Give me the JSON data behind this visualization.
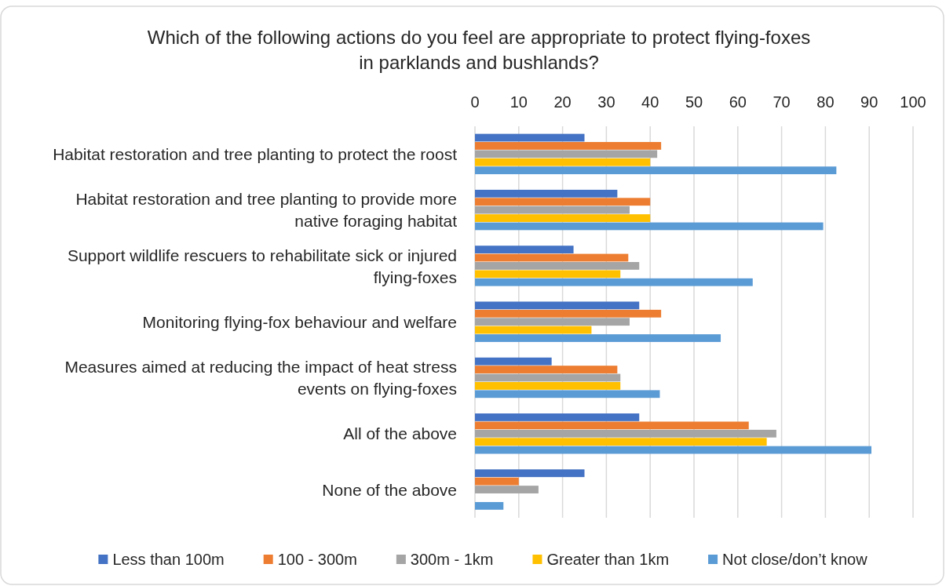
{
  "chart_data": {
    "type": "bar",
    "orientation": "horizontal",
    "title": "Which of the following actions do you feel are appropriate to protect flying-foxes in parklands and bushlands?",
    "categories": [
      "Habitat restoration and tree planting to protect the roost",
      "Habitat restoration and tree planting to provide more native foraging habitat",
      "Support wildlife rescuers to rehabilitate sick or injured flying-foxes",
      "Monitoring flying-fox behaviour and welfare",
      "Measures aimed at reducing the impact of heat stress events on flying-foxes",
      "All of the above",
      "None of the above"
    ],
    "series": [
      {
        "name": "Less than 100m",
        "color": "#4472c4",
        "values": [
          25,
          32.5,
          22.5,
          37.5,
          17.5,
          37.5,
          25
        ]
      },
      {
        "name": "100 - 300m",
        "color": "#ed7d31",
        "values": [
          42.5,
          40,
          35,
          42.5,
          32.5,
          62.5,
          10
        ]
      },
      {
        "name": "300m - 1km",
        "color": "#a5a5a5",
        "values": [
          41.6,
          35.3,
          37.5,
          35.3,
          33.2,
          68.8,
          14.5
        ]
      },
      {
        "name": "Greater than 1km",
        "color": "#ffc000",
        "values": [
          40,
          40,
          33.2,
          26.6,
          33.2,
          66.6,
          null
        ]
      },
      {
        "name": "Not close/don’t know",
        "color": "#5b9bd5",
        "values": [
          82.5,
          79.5,
          63.4,
          56.1,
          42.2,
          90.5,
          6.5
        ]
      }
    ],
    "xlim": [
      0,
      100
    ],
    "xticks": [
      0,
      10,
      20,
      30,
      40,
      50,
      60,
      70,
      80,
      90,
      100
    ],
    "grid": "x",
    "legend": "bottom"
  }
}
